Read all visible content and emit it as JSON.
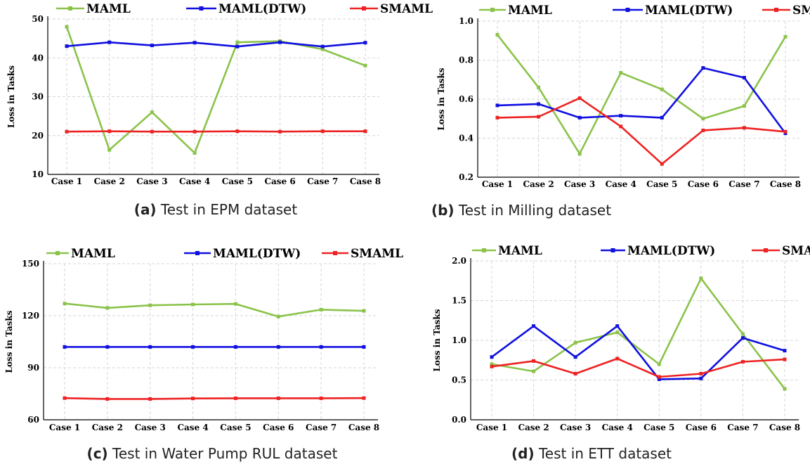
{
  "colors": {
    "MAML": "#8bc34a",
    "MAML(DTW)": "#1010e0",
    "SMAML": "#ee2222"
  },
  "chart_data": [
    {
      "type": "line",
      "caption_letter": "(a)",
      "caption_text": " Test in EPM dataset",
      "ylabel": "Loss in Tasks",
      "categories": [
        "Case 1",
        "Case 2",
        "Case 3",
        "Case 4",
        "Case 5",
        "Case 6",
        "Case 7",
        "Case 8"
      ],
      "ylim": [
        10,
        50
      ],
      "yticks": [
        10,
        20,
        30,
        40,
        50
      ],
      "ytick_labels": [
        "10",
        "20",
        "30",
        "40",
        "50"
      ],
      "grid": true,
      "legend": "top",
      "series": [
        {
          "name": "MAML",
          "values": [
            48,
            16.3,
            26,
            15.5,
            44,
            44.3,
            42.2,
            38
          ]
        },
        {
          "name": "MAML(DTW)",
          "values": [
            43,
            44,
            43.2,
            43.9,
            42.9,
            44,
            42.9,
            43.9
          ]
        },
        {
          "name": "SMAML",
          "values": [
            21,
            21.1,
            21,
            21,
            21.1,
            21,
            21.1,
            21.1
          ]
        }
      ]
    },
    {
      "type": "line",
      "caption_letter": "(b)",
      "caption_text": " Test in Milling dataset",
      "ylabel": "Loss in Tasks",
      "categories": [
        "Case 1",
        "Case 2",
        "Case 3",
        "Case 4",
        "Case 5",
        "Case 6",
        "Case 7",
        "Case 8"
      ],
      "ylim": [
        0.2,
        1.0
      ],
      "yticks": [
        0.2,
        0.4,
        0.6,
        0.8,
        1.0
      ],
      "ytick_labels": [
        "0.2",
        "0.4",
        "0.6",
        "0.8",
        "1.0"
      ],
      "grid": true,
      "legend": "top",
      "series": [
        {
          "name": "MAML",
          "values": [
            0.93,
            0.66,
            0.32,
            0.735,
            0.65,
            0.5,
            0.565,
            0.92
          ]
        },
        {
          "name": "MAML(DTW)",
          "values": [
            0.568,
            0.575,
            0.505,
            0.515,
            0.505,
            0.76,
            0.71,
            0.425
          ]
        },
        {
          "name": "SMAML",
          "values": [
            0.505,
            0.51,
            0.605,
            0.46,
            0.268,
            0.44,
            0.453,
            0.433
          ]
        }
      ]
    },
    {
      "type": "line",
      "caption_letter": "(c)",
      "caption_text": " Test in Water Pump RUL dataset",
      "ylabel": "Loss in Tasks",
      "categories": [
        "Case 1",
        "Case 2",
        "Case 3",
        "Case 4",
        "Case 5",
        "Case 6",
        "Case 7",
        "Case 8"
      ],
      "ylim": [
        60,
        150
      ],
      "yticks": [
        60,
        90,
        120,
        150
      ],
      "ytick_labels": [
        "60",
        "90",
        "120",
        "150"
      ],
      "grid": true,
      "legend": "top",
      "series": [
        {
          "name": "MAML",
          "values": [
            127,
            124.5,
            126,
            126.5,
            126.8,
            119.5,
            123.5,
            122.8
          ]
        },
        {
          "name": "MAML(DTW)",
          "values": [
            102,
            102,
            102,
            102,
            102,
            102,
            102,
            102
          ]
        },
        {
          "name": "SMAML",
          "values": [
            72.5,
            72,
            72,
            72.3,
            72.4,
            72.4,
            72.4,
            72.5
          ]
        }
      ]
    },
    {
      "type": "line",
      "caption_letter": "(d)",
      "caption_text": " Test in ETT dataset",
      "ylabel": "Loss in Tasks",
      "categories": [
        "Case 1",
        "Case 2",
        "Case 3",
        "Case 4",
        "Case 5",
        "Case 6",
        "Case 7",
        "Case 8"
      ],
      "ylim": [
        0.0,
        2.0
      ],
      "yticks": [
        0.0,
        0.5,
        1.0,
        1.5,
        2.0
      ],
      "ytick_labels": [
        "0.0",
        "0.5",
        "1.0",
        "1.5",
        "2.0"
      ],
      "grid": true,
      "legend": "top",
      "series": [
        {
          "name": "MAML",
          "values": [
            0.7,
            0.61,
            0.97,
            1.1,
            0.7,
            1.78,
            1.08,
            0.39
          ]
        },
        {
          "name": "MAML(DTW)",
          "values": [
            0.79,
            1.18,
            0.79,
            1.18,
            0.51,
            0.52,
            1.03,
            0.87
          ]
        },
        {
          "name": "SMAML",
          "values": [
            0.67,
            0.74,
            0.58,
            0.77,
            0.54,
            0.58,
            0.73,
            0.76
          ]
        }
      ]
    }
  ]
}
